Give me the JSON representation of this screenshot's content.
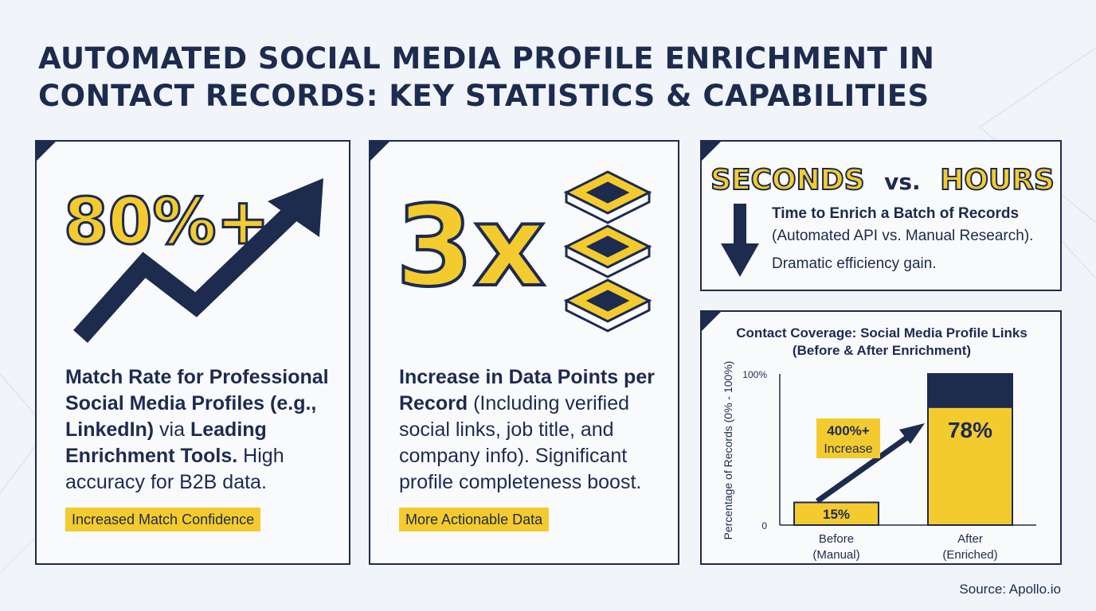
{
  "title": {
    "line1": "AUTOMATED SOCIAL MEDIA PROFILE ENRICHMENT IN",
    "line2": "CONTACT RECORDS: KEY STATISTICS & CAPABILITIES"
  },
  "card1": {
    "stat": "80%+",
    "desc_bold1": "Match Rate for Professional Social Media Profiles (e.g., LinkedIn)",
    "desc_normal1": " via ",
    "desc_bold2": "Leading Enrichment Tools.",
    "desc_normal2": " High accuracy for B2B data.",
    "tag": "Increased Match Confidence",
    "icon": "trend-up-arrow-icon"
  },
  "card2": {
    "stat": "3x",
    "desc_bold": "Increase in Data Points per Record",
    "desc_normal": " (Including verified social links, job title, and company info). Significant profile completeness boost.",
    "tag": "More Actionable Data",
    "icon": "stacked-layers-icon"
  },
  "card3": {
    "stat_left": "SECONDS",
    "stat_mid": "vs.",
    "stat_right": "HOURS",
    "line_bold": "Time to Enrich a Batch of Records",
    "line_normal": "(Automated API vs. Manual Research).",
    "line_last": "Dramatic efficiency gain.",
    "icon": "down-arrow-icon"
  },
  "chart": {
    "title_line1": "Contact Coverage: Social Media Profile Links",
    "title_line2": "(Before & After Enrichment)",
    "callout_value": "400%+",
    "callout_label": "Increase"
  },
  "chart_data": {
    "type": "bar",
    "title": "Contact Coverage: Social Media Profile Links (Before & After Enrichment)",
    "ylabel": "Percentage of Records (0% - 100%)",
    "ylim": [
      0,
      100
    ],
    "yticks": [
      "0",
      "100%"
    ],
    "categories": [
      "Before (Manual)",
      "After (Enriched)"
    ],
    "category_lines": [
      [
        "Before",
        "(Manual)"
      ],
      [
        "After",
        "(Enriched)"
      ]
    ],
    "values": [
      15,
      78
    ],
    "value_labels": [
      "15%",
      "78%"
    ],
    "stacked_total": [
      15,
      100
    ],
    "grid": false
  },
  "source": "Source: Apollo.io",
  "colors": {
    "navy": "#1d2b4f",
    "yellow": "#f4cb2f",
    "background": "#f1f4f9"
  }
}
